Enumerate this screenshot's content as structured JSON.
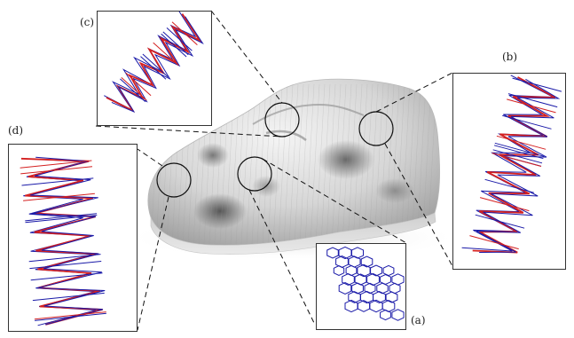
{
  "figure": {
    "labels": {
      "a": "(a)",
      "b": "(b)",
      "c": "(c)",
      "d": "(d)"
    },
    "colors": {
      "mesh_edge": "#1a1aa8",
      "highlight_edge": "#d42020",
      "surface_light": "#e2e2e2",
      "surface_dark": "#6a6a6a",
      "frame": "#333333"
    },
    "icons": {
      "surface": "curved-shell-surface",
      "zoom_circle": "magnifier-circle"
    }
  }
}
